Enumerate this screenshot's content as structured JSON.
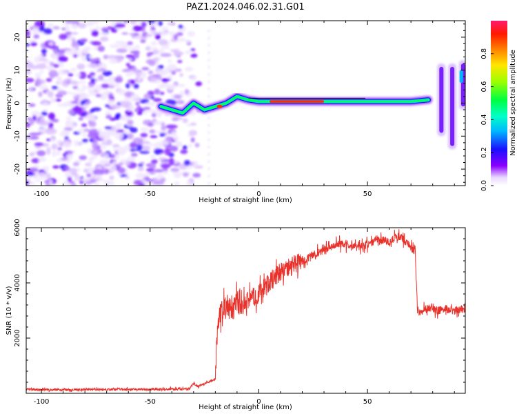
{
  "title": "PAZ1.2024.046.02.31.G01",
  "chart_data": [
    {
      "type": "heatmap",
      "title": "PAZ1.2024.046.02.31.G01",
      "xlabel": "Height of straight line (km)",
      "ylabel": "Frequency (Hz)",
      "xlim": [
        -107,
        95
      ],
      "ylim": [
        -25,
        25
      ],
      "xticks": [
        -100,
        -50,
        0,
        50
      ],
      "yticks": [
        -20,
        -10,
        0,
        10,
        20
      ],
      "colorbar": {
        "label": "Normalized spectral amplitude",
        "range": [
          0,
          1
        ],
        "ticks": [
          0.0,
          0.2,
          0.4,
          0.6,
          0.8
        ]
      },
      "series": [
        {
          "description_points": "Signal-line center frequency vs height (Hz)",
          "x": [
            -45,
            -40,
            -35,
            -30,
            -25,
            -20,
            -15,
            -10,
            -5,
            0,
            10,
            20,
            30,
            40,
            50,
            60,
            70,
            78,
            82,
            86,
            90,
            95
          ],
          "y": [
            -1,
            -2,
            -3,
            0,
            -2,
            -1,
            0,
            2,
            1,
            0.5,
            0.5,
            0.5,
            0.5,
            0.5,
            0.5,
            0.5,
            0.5,
            1,
            0,
            -2,
            4,
            8
          ]
        }
      ]
    },
    {
      "type": "line",
      "xlabel": "Height of straight line (km)",
      "ylabel": "SNR (10 * v/v)",
      "xlim": [
        -107,
        95
      ],
      "ylim": [
        0,
        6000
      ],
      "xticks": [
        -100,
        -50,
        0,
        50
      ],
      "yticks": [
        2000,
        4000,
        6000
      ],
      "color": "#e8322c",
      "x": [
        -107,
        -100,
        -90,
        -80,
        -70,
        -60,
        -50,
        -40,
        -32,
        -30,
        -28,
        -24,
        -20,
        -19,
        -18,
        -15,
        -12,
        -10,
        -8,
        -5,
        -2,
        0,
        2,
        5,
        10,
        15,
        20,
        25,
        30,
        35,
        40,
        45,
        50,
        55,
        60,
        65,
        70,
        72,
        73,
        74,
        78,
        82,
        86,
        90,
        95
      ],
      "y": [
        150,
        130,
        120,
        140,
        130,
        150,
        140,
        150,
        160,
        350,
        250,
        380,
        500,
        2400,
        2900,
        3200,
        3000,
        3300,
        3000,
        3400,
        3500,
        3600,
        3800,
        4000,
        4400,
        4600,
        4800,
        5000,
        5200,
        5400,
        5400,
        5300,
        5400,
        5600,
        5500,
        5700,
        5300,
        5100,
        3000,
        2950,
        3100,
        3000,
        3050,
        3000,
        3050
      ]
    }
  ]
}
